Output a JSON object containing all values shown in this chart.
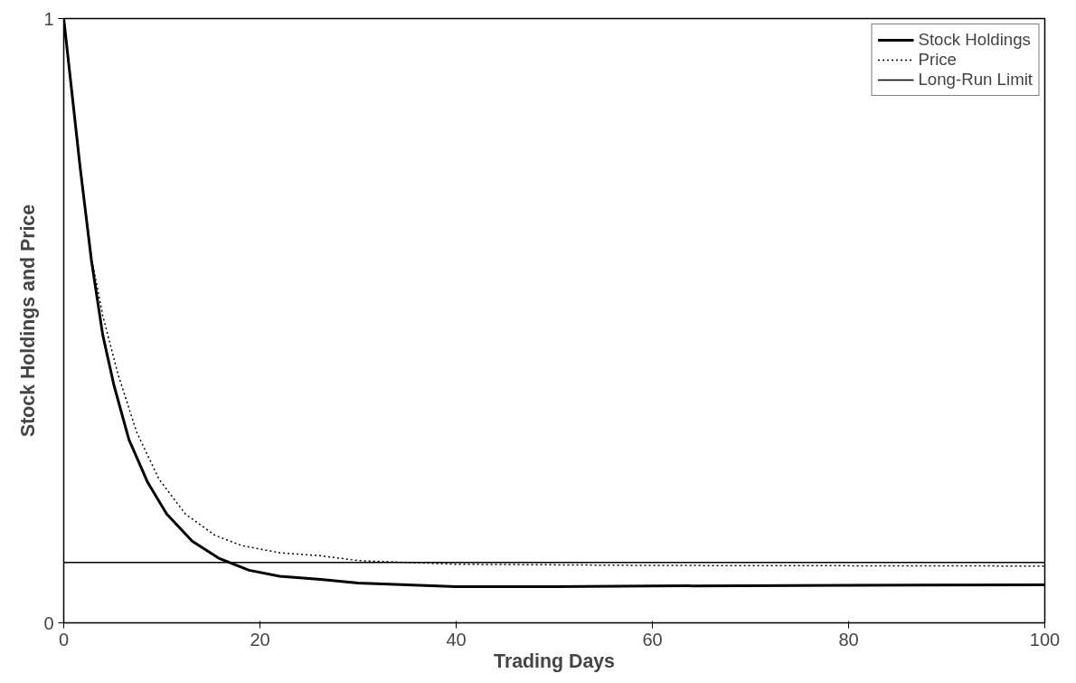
{
  "chart_data": {
    "type": "line",
    "xlabel": "Trading Days",
    "ylabel": "Stock Holdings and Price",
    "xlim": [
      0,
      100
    ],
    "ylim": [
      0,
      1
    ],
    "xticks": [
      0,
      20,
      40,
      60,
      80,
      100
    ],
    "yticks": [
      0,
      1
    ],
    "grid": false,
    "legend": "top right",
    "marker": "none",
    "series": [
      {
        "name": "Stock Holdings",
        "color": "#000000",
        "line_style": "solid",
        "x": [
          0,
          1.67,
          2.82,
          3.97,
          5.12,
          6.65,
          8.57,
          10.5,
          13.1,
          15.8,
          18.9,
          22,
          26.2,
          30,
          40,
          50,
          60,
          80,
          100
        ],
        "values": [
          1,
          0.754,
          0.6,
          0.477,
          0.393,
          0.303,
          0.232,
          0.18,
          0.135,
          0.107,
          0.087,
          0.077,
          0.072,
          0.066,
          0.06,
          0.06,
          0.061,
          0.062,
          0.063
        ]
      },
      {
        "name": "Price",
        "color": "#000000",
        "line_style": "dotted",
        "x": [
          0,
          1.67,
          2.82,
          3.97,
          5.5,
          7.42,
          9.7,
          12.4,
          15.4,
          18.1,
          22,
          26.2,
          30,
          40,
          60,
          100
        ],
        "values": [
          1,
          0.754,
          0.605,
          0.509,
          0.413,
          0.316,
          0.238,
          0.18,
          0.145,
          0.128,
          0.116,
          0.111,
          0.103,
          0.097,
          0.095,
          0.094
        ]
      }
    ],
    "ref_lines": [
      {
        "axis": "y",
        "value": 0.1,
        "label": "Long-Run Limit",
        "color": "#000000",
        "line_style": "solid"
      }
    ]
  }
}
